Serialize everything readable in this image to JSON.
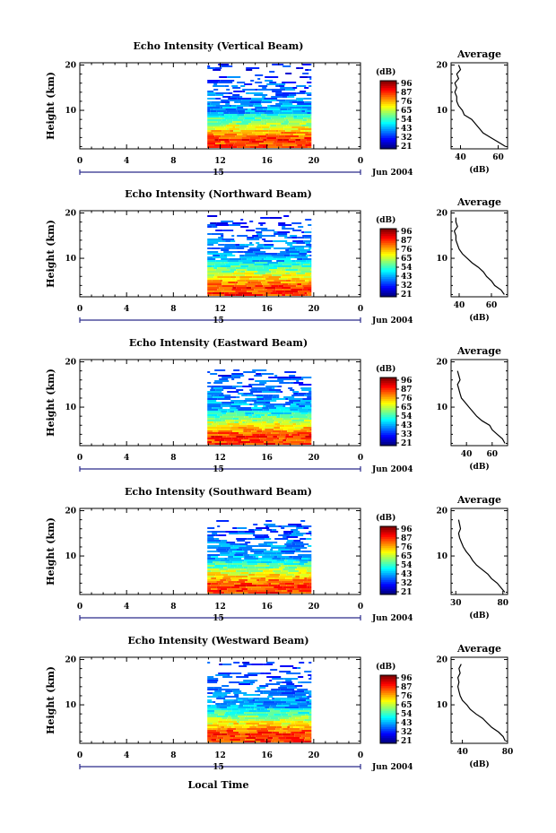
{
  "figure": {
    "x_axis_label": "Local Time",
    "x_ticks": [
      "0",
      "4",
      "8",
      "12",
      "16",
      "20",
      "0"
    ],
    "date_day": "15",
    "date_month_year": "Jun 2004",
    "y_axis_label": "Height (km)",
    "y_ticks": [
      "10",
      "20"
    ],
    "colorbar_unit": "(dB)",
    "avg_title": "Average",
    "avg_unit": "(dB)"
  },
  "chart_data": [
    {
      "type": "heatmap",
      "title": "Echo Intensity (Vertical Beam)",
      "x_range_hours": [
        0,
        24
      ],
      "data_window_hours": [
        10.9,
        19.8
      ],
      "y_range_km": [
        1.5,
        20.5
      ],
      "echo_top_km": 20,
      "colorbar_ticks": [
        "96",
        "87",
        "76",
        "65",
        "54",
        "43",
        "32",
        "21"
      ],
      "colorbar_range_db": [
        21,
        96
      ],
      "average_profile": {
        "xlim_db": [
          35,
          65
        ],
        "x_ticks": [
          "40",
          "60"
        ],
        "height_km": [
          2,
          3,
          4,
          5,
          6,
          7,
          8,
          9,
          10,
          11,
          12,
          13,
          14,
          15,
          16,
          17,
          18,
          19,
          20
        ],
        "avg_db": [
          64,
          60,
          56,
          52,
          50,
          48,
          46,
          42,
          41,
          39,
          38,
          38,
          37,
          38,
          37,
          39,
          38,
          40,
          39
        ]
      }
    },
    {
      "type": "heatmap",
      "title": "Echo Intensity (Northward Beam)",
      "x_range_hours": [
        0,
        24
      ],
      "data_window_hours": [
        10.9,
        19.8
      ],
      "y_range_km": [
        1.5,
        20.5
      ],
      "echo_top_km": 19,
      "colorbar_ticks": [
        "96",
        "87",
        "76",
        "65",
        "54",
        "43",
        "32",
        "21"
      ],
      "colorbar_range_db": [
        21,
        96
      ],
      "average_profile": {
        "xlim_db": [
          35,
          70
        ],
        "x_ticks": [
          "40",
          "60"
        ],
        "height_km": [
          2,
          3,
          4,
          5,
          6,
          7,
          8,
          9,
          10,
          11,
          12,
          13,
          14,
          15,
          16,
          17,
          18,
          19
        ],
        "avg_db": [
          68,
          66,
          62,
          60,
          57,
          55,
          52,
          48,
          45,
          42,
          40,
          39,
          38,
          38,
          37,
          39,
          38,
          38
        ]
      }
    },
    {
      "type": "heatmap",
      "title": "Echo Intensity (Eastward Beam)",
      "x_range_hours": [
        0,
        24
      ],
      "data_window_hours": [
        10.9,
        19.8
      ],
      "y_range_km": [
        1.5,
        20.5
      ],
      "echo_top_km": 18,
      "colorbar_ticks": [
        "96",
        "87",
        "76",
        "65",
        "54",
        "43",
        "33",
        "21"
      ],
      "colorbar_range_db": [
        21,
        96
      ],
      "average_profile": {
        "xlim_db": [
          28,
          72
        ],
        "x_ticks": [
          "40",
          "60"
        ],
        "height_km": [
          2,
          3,
          4,
          5,
          6,
          7,
          8,
          9,
          10,
          11,
          12,
          13,
          14,
          15,
          16,
          17,
          18
        ],
        "avg_db": [
          70,
          68,
          64,
          60,
          58,
          52,
          48,
          45,
          42,
          39,
          36,
          35,
          34,
          33,
          35,
          34,
          33
        ]
      }
    },
    {
      "type": "heatmap",
      "title": "Echo Intensity (Southward Beam)",
      "x_range_hours": [
        0,
        24
      ],
      "data_window_hours": [
        10.9,
        19.8
      ],
      "y_range_km": [
        1.5,
        20.5
      ],
      "echo_top_km": 18,
      "colorbar_ticks": [
        "96",
        "87",
        "76",
        "65",
        "54",
        "43",
        "32",
        "21"
      ],
      "colorbar_range_db": [
        21,
        96
      ],
      "average_profile": {
        "xlim_db": [
          25,
          85
        ],
        "x_ticks": [
          "30",
          "80"
        ],
        "height_km": [
          2,
          3,
          4,
          5,
          6,
          7,
          8,
          9,
          10,
          11,
          12,
          13,
          14,
          15,
          16,
          17,
          18
        ],
        "avg_db": [
          82,
          78,
          74,
          68,
          64,
          58,
          52,
          48,
          45,
          41,
          38,
          36,
          34,
          33,
          35,
          34,
          33
        ]
      }
    },
    {
      "type": "heatmap",
      "title": "Echo Intensity (Westward Beam)",
      "x_range_hours": [
        0,
        24
      ],
      "data_window_hours": [
        10.9,
        19.8
      ],
      "y_range_km": [
        1.5,
        20.5
      ],
      "echo_top_km": 19,
      "colorbar_ticks": [
        "96",
        "87",
        "76",
        "65",
        "54",
        "43",
        "32",
        "21"
      ],
      "colorbar_range_db": [
        21,
        96
      ],
      "average_profile": {
        "xlim_db": [
          30,
          80
        ],
        "x_ticks": [
          "40",
          "80"
        ],
        "height_km": [
          2,
          3,
          4,
          5,
          6,
          7,
          8,
          9,
          10,
          11,
          12,
          13,
          14,
          15,
          16,
          17,
          18,
          19
        ],
        "avg_db": [
          78,
          76,
          72,
          66,
          62,
          58,
          52,
          47,
          44,
          40,
          38,
          37,
          36,
          37,
          36,
          38,
          37,
          39
        ]
      }
    }
  ]
}
